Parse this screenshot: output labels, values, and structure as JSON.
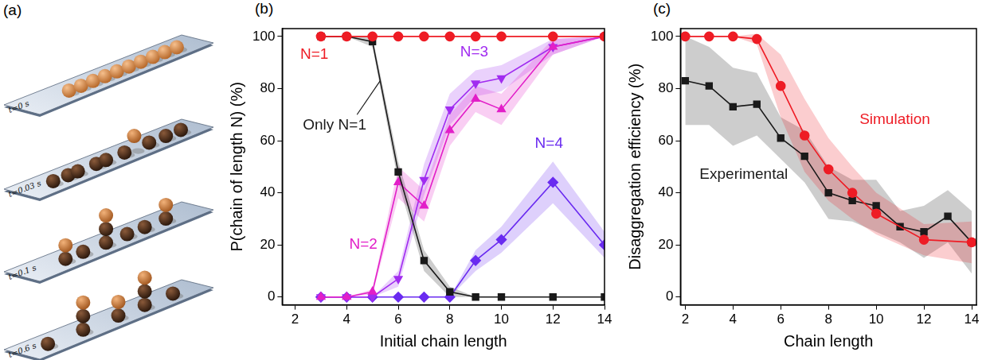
{
  "diagram": {
    "label": "(a)",
    "frames": [
      "t=0 s",
      "t=0.03 s",
      "t=0.1 s",
      "t=0.6 s"
    ]
  },
  "chart_data": [
    {
      "type": "line",
      "label": "(b)",
      "x_label": "Initial chain length",
      "y_label": "P(chain of length N) (%)",
      "xlim": [
        1.5,
        14
      ],
      "xticks": [
        2,
        4,
        6,
        8,
        10,
        12,
        14
      ],
      "ylim": [
        -3,
        103
      ],
      "yticks": [
        0,
        20,
        40,
        60,
        80,
        100
      ],
      "grid": false,
      "x": [
        3,
        4,
        5,
        6,
        7,
        8,
        9,
        10,
        12,
        14
      ],
      "series": [
        {
          "name": "N=1",
          "color": "#ee1c25",
          "marker": "circle",
          "line_style": "solid",
          "values": [
            100,
            100,
            100,
            100,
            100,
            100,
            100,
            100,
            100,
            100
          ]
        },
        {
          "name": "Only N=1",
          "color": "#1a1a1a",
          "marker": "square",
          "line_style": "solid",
          "values": [
            100,
            100,
            98,
            48,
            14,
            2,
            0,
            0,
            0,
            0
          ],
          "error": [
            0,
            0,
            2,
            4,
            4,
            2,
            0,
            0,
            0,
            0
          ]
        },
        {
          "name": "N=2",
          "color": "#e21fc8",
          "marker": "triangle",
          "line_style": "solid",
          "values": [
            0,
            0,
            2,
            44,
            35,
            64,
            76,
            72,
            96,
            100
          ],
          "error": [
            0,
            0,
            1,
            6,
            6,
            6,
            5,
            6,
            3,
            0
          ]
        },
        {
          "name": "N=3",
          "color": "#a12cf0",
          "marker": "triangle_down",
          "line_style": "solid",
          "values": [
            0,
            0,
            0,
            7,
            45,
            72,
            82,
            84,
            96,
            100
          ],
          "error": [
            0,
            0,
            0,
            3,
            6,
            6,
            5,
            5,
            3,
            0
          ]
        },
        {
          "name": "N=4",
          "color": "#6a2bf0",
          "marker": "diamond",
          "line_style": "solid",
          "values": [
            0,
            0,
            0,
            0,
            0,
            0,
            14,
            22,
            44,
            20
          ],
          "error": [
            0,
            0,
            0,
            0,
            0,
            0,
            4,
            5,
            8,
            5
          ]
        }
      ]
    },
    {
      "type": "line",
      "label": "(c)",
      "x_label": "Chain length",
      "y_label": "Disaggregation efficiency (%)",
      "xlim": [
        1.8,
        14.2
      ],
      "xticks": [
        2,
        4,
        6,
        8,
        10,
        12,
        14
      ],
      "ylim": [
        -3,
        103
      ],
      "yticks": [
        0,
        20,
        40,
        60,
        80,
        100
      ],
      "grid": false,
      "series": [
        {
          "name": "Simulation",
          "color": "#ee1c25",
          "marker": "circle",
          "line_style": "solid",
          "x": [
            2,
            3,
            4,
            5,
            6,
            7,
            8,
            9,
            10,
            12,
            14
          ],
          "values": [
            100,
            100,
            100,
            99,
            81,
            62,
            49,
            40,
            32,
            22,
            21
          ],
          "error": [
            0,
            0,
            0,
            2,
            12,
            14,
            12,
            10,
            8,
            6,
            8
          ]
        },
        {
          "name": "Experimental",
          "color": "#1a1a1a",
          "marker": "square",
          "line_style": "solid",
          "x": [
            2,
            3,
            4,
            5,
            6,
            7,
            8,
            9,
            10,
            11,
            12,
            13,
            14
          ],
          "values": [
            83,
            81,
            73,
            74,
            61,
            54,
            40,
            37,
            35,
            27,
            25,
            31,
            21
          ],
          "error": [
            17,
            15,
            15,
            12,
            8,
            10,
            10,
            8,
            10,
            6,
            10,
            10,
            12
          ]
        }
      ]
    }
  ]
}
